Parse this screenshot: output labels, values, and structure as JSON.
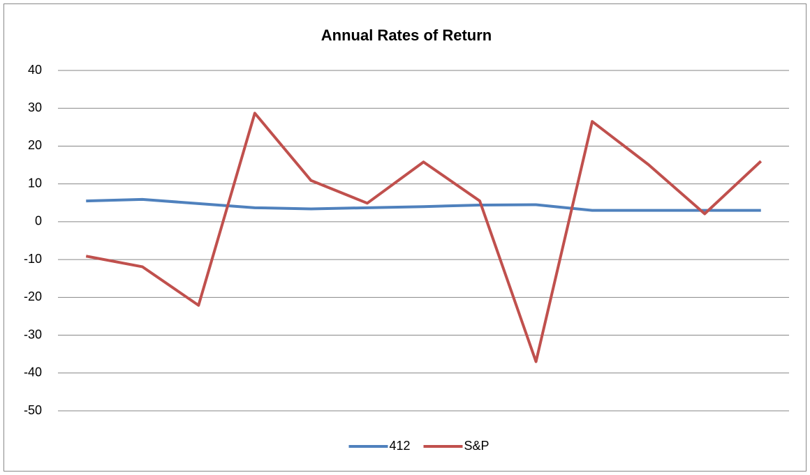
{
  "chart_data": {
    "type": "line",
    "title": "Annual Rates of Return",
    "categories": [
      null,
      null,
      null,
      null,
      null,
      null,
      null,
      null,
      null,
      null,
      null,
      null,
      null
    ],
    "series": [
      {
        "name": "412",
        "color": "#4f81bd",
        "values": [
          5.5,
          5.9,
          4.8,
          3.7,
          3.4,
          3.7,
          4.0,
          4.4,
          4.5,
          3.0,
          3.0,
          3.0,
          3.0
        ]
      },
      {
        "name": "S&P",
        "color": "#c0504d",
        "values": [
          -9.1,
          -11.9,
          -22.1,
          28.7,
          10.9,
          4.9,
          15.8,
          5.5,
          -37.0,
          26.5,
          15.1,
          2.1,
          16.0
        ]
      }
    ],
    "ylim": [
      -50,
      40
    ],
    "yticks": [
      -50,
      -40,
      -30,
      -20,
      -10,
      0,
      10,
      20,
      30,
      40
    ],
    "grid": true,
    "legend": "bottom"
  }
}
